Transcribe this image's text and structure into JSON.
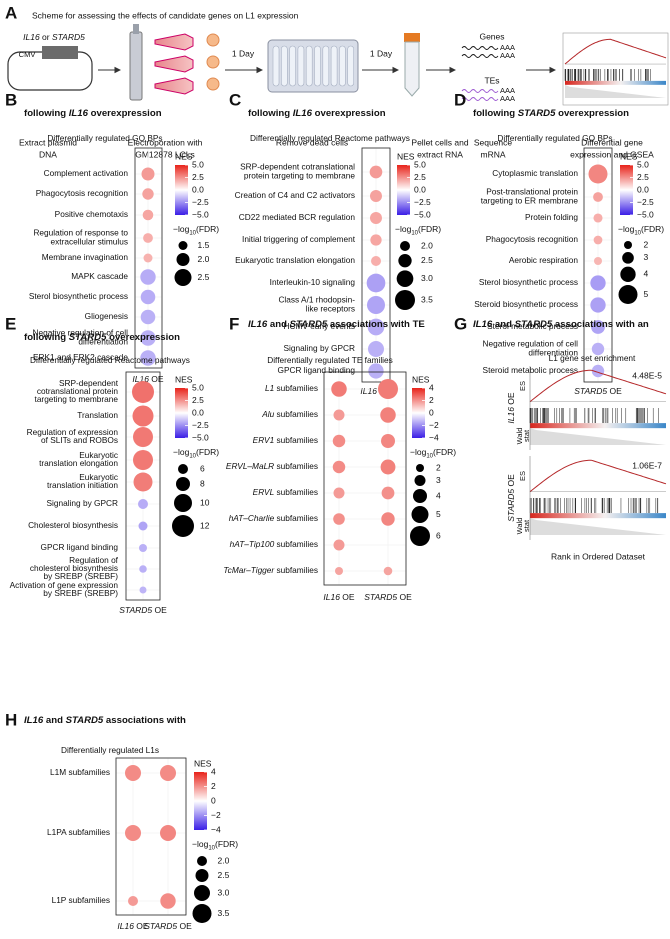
{
  "panel_a": {
    "letter": "A",
    "title": "Scheme for assessing the effects of candidate genes on L1 expression",
    "plasmid_genes": [
      {
        "text": "IL16",
        "italic": true
      },
      {
        "text": " or "
      },
      {
        "text": "STARD5",
        "italic": true
      }
    ],
    "promoter": "CMV",
    "steps": [
      [
        "Extract plasmid",
        "DNA"
      ],
      [
        "Electroporation with",
        "GM12878 LCLs"
      ],
      [
        "Remove dead cells"
      ],
      [
        "Pellet cells and",
        "extract RNA"
      ],
      [
        "Sequence",
        "mRNA"
      ],
      [
        "Differential gene",
        "expression and GSEA"
      ]
    ],
    "intervals": [
      "1 Day",
      "1 Day"
    ],
    "genes": "Genes",
    "tes": "TEs",
    "polya": "AAA"
  },
  "panel_b": {
    "letter": "B",
    "title": [
      [
        "Top enriched GO Biological Processes"
      ],
      [
        {
          "text": "following "
        },
        {
          "text": "IL16",
          "italic": true
        },
        {
          "text": " overexpression"
        }
      ]
    ],
    "subtitle": "Differentially regulated GO BPs",
    "rows": [
      [
        "Complement activation"
      ],
      [
        "Phagocytosis recognition"
      ],
      [
        "Positive chemotaxis"
      ],
      [
        "Regulation of response to",
        "extracellular stimulus"
      ],
      [
        "Membrane invagination"
      ],
      [
        "MAPK cascade"
      ],
      [
        "Sterol biosynthetic process"
      ],
      [
        "Gliogenesis"
      ],
      [
        "Negative regulation of cell",
        "differentiation"
      ],
      [
        "ERK1 and ERK2 cascade"
      ]
    ],
    "columns": [
      {
        "label": [
          {
            "text": "IL16",
            "italic": true
          },
          {
            "text": " OE"
          }
        ],
        "nes": [
          2.5,
          2.3,
          2.2,
          2.0,
          1.9,
          -2.0,
          -2.0,
          -1.9,
          -1.9,
          -1.9
        ],
        "log_fdr": [
          2.0,
          1.8,
          1.7,
          1.6,
          1.5,
          2.3,
          2.2,
          2.2,
          2.3,
          2.3
        ]
      }
    ],
    "nes_label": "NES",
    "nes_lim": [
      -5,
      5
    ],
    "nes_ticks": [
      {
        "value": 5,
        "label": "5.0"
      },
      {
        "value": 2.5,
        "label": "2.5"
      },
      {
        "value": 0,
        "label": "0.0"
      },
      {
        "value": -2.5,
        "label": "−2.5"
      },
      {
        "value": -5,
        "label": "−5.0"
      }
    ],
    "size_label": [
      {
        "text": "−log"
      },
      {
        "text": "10",
        "sub": true
      },
      {
        "text": "(FDR)"
      }
    ],
    "size_ticks": [
      1.5,
      {
        "value": 2,
        "label": "2.0"
      },
      2.5
    ]
  },
  "panel_c": {
    "letter": "C",
    "title": [
      [
        "Top enriched Reactome gene sets"
      ],
      [
        {
          "text": "following "
        },
        {
          "text": "IL16",
          "italic": true
        },
        {
          "text": " overexpression"
        }
      ]
    ],
    "subtitle": "Differentially regulated Reactome pathways",
    "rows": [
      [
        "SRP-dependent cotranslational",
        "protein targeting to membrane"
      ],
      [
        "Creation of C4 and C2 activators"
      ],
      [
        "CD22 mediated BCR regulation"
      ],
      [
        "Initial triggering of complement"
      ],
      [
        "Eukaryotic translation elongation"
      ],
      [
        "Interleukin-10 signaling"
      ],
      [
        "Class A/1 rhodopsin-",
        "like receptors"
      ],
      [
        "HCMV early events"
      ],
      [
        "Signaling by GPCR"
      ],
      [
        "GPCR ligand binding"
      ]
    ],
    "columns": [
      {
        "label": [
          {
            "text": "IL16",
            "italic": true
          },
          {
            "text": " OE"
          }
        ],
        "nes": [
          2.5,
          2.3,
          2.2,
          2.2,
          2.0,
          -2.3,
          -2.2,
          -2.0,
          -1.9,
          -1.9
        ],
        "log_fdr": [
          2.4,
          2.3,
          2.3,
          2.2,
          2.0,
          3.3,
          3.2,
          3.0,
          2.9,
          2.8
        ]
      }
    ],
    "nes_label": "NES",
    "nes_lim": [
      -5,
      5
    ],
    "nes_ticks": [
      {
        "value": 5,
        "label": "5.0"
      },
      {
        "value": 2.5,
        "label": "2.5"
      },
      {
        "value": 0,
        "label": "0.0"
      },
      {
        "value": -2.5,
        "label": "−2.5"
      },
      {
        "value": -5,
        "label": "−5.0"
      }
    ],
    "size_label": [
      {
        "text": "−log"
      },
      {
        "text": "10",
        "sub": true
      },
      {
        "text": "(FDR)"
      }
    ],
    "size_ticks": [
      {
        "value": 2,
        "label": "2.0"
      },
      2.5,
      {
        "value": 3,
        "label": "3.0"
      },
      3.5
    ]
  },
  "panel_d": {
    "letter": "D",
    "title": [
      [
        "Top enriched GO Biological Processes"
      ],
      [
        {
          "text": "following "
        },
        {
          "text": "STARD5",
          "italic": true
        },
        {
          "text": " overexpression"
        }
      ]
    ],
    "subtitle": "Differentially regulated GO BPs",
    "rows": [
      [
        "Cytoplasmic translation"
      ],
      [
        "Post-translational protein",
        "targeting to ER membrane"
      ],
      [
        "Protein folding"
      ],
      [
        "Phagocytosis recognition"
      ],
      [
        "Aerobic respiration"
      ],
      [
        "Sterol biosynthetic process"
      ],
      [
        "Steroid biosynthetic process"
      ],
      [
        "Sterol metabolic process"
      ],
      [
        "Negative regulation of cell",
        "differentiation"
      ],
      [
        "Steroid metabolic process"
      ]
    ],
    "columns": [
      {
        "label": [
          {
            "text": "STARD5",
            "italic": true
          },
          {
            "text": " OE"
          }
        ],
        "nes": [
          3.0,
          2.3,
          2.0,
          2.0,
          1.8,
          -2.4,
          -2.3,
          -2.2,
          -1.9,
          -1.9
        ],
        "log_fdr": [
          5.0,
          2.5,
          2.3,
          2.2,
          2.0,
          4.0,
          4.0,
          3.6,
          3.2,
          3.2
        ]
      }
    ],
    "nes_label": "NES",
    "nes_lim": [
      -5,
      5
    ],
    "nes_ticks": [
      {
        "value": 5,
        "label": "5.0"
      },
      {
        "value": 2.5,
        "label": "2.5"
      },
      {
        "value": 0,
        "label": "0.0"
      },
      {
        "value": -2.5,
        "label": "−2.5"
      },
      {
        "value": -5,
        "label": "−5.0"
      }
    ],
    "size_label": [
      {
        "text": "−log"
      },
      {
        "text": "10",
        "sub": true
      },
      {
        "text": "(FDR)"
      }
    ],
    "size_ticks": [
      2,
      3,
      4,
      5
    ]
  },
  "panel_e": {
    "letter": "E",
    "title": [
      [
        "Top enriched Reactome gene sets"
      ],
      [
        {
          "text": "following "
        },
        {
          "text": "STARD5",
          "italic": true
        },
        {
          "text": " overexpression"
        }
      ]
    ],
    "subtitle": "Differentially regulated Reactome pathways",
    "rows": [
      [
        "SRP-dependent",
        "cotranslational protein",
        "targeting to membrane"
      ],
      [
        "Translation"
      ],
      [
        "Regulation of expression",
        "of SLITs and ROBOs"
      ],
      [
        "Eukaryotic",
        "translation elongation"
      ],
      [
        "Eukaryotic",
        "translation initiation"
      ],
      [
        "Signaling by GPCR"
      ],
      [
        "Cholesterol biosynthesis"
      ],
      [
        "GPCR ligand binding"
      ],
      [
        "Regulation of",
        "cholesterol biosynthesis",
        "by SREBP (SREBF)"
      ],
      [
        "Activation of gene expression",
        "by SREBF (SREBP)"
      ]
    ],
    "columns": [
      {
        "label": [
          {
            "text": "STARD5",
            "italic": true
          },
          {
            "text": " OE"
          }
        ],
        "nes": [
          3.5,
          3.4,
          3.3,
          3.3,
          3.2,
          -2.0,
          -2.2,
          -1.9,
          -1.9,
          -1.8
        ],
        "log_fdr": [
          12,
          11.5,
          11,
          11,
          10.5,
          6,
          5.5,
          5,
          4.8,
          4.5
        ]
      }
    ],
    "nes_label": "NES",
    "nes_lim": [
      -5,
      5
    ],
    "nes_ticks": [
      {
        "value": 5,
        "label": "5.0"
      },
      {
        "value": 2.5,
        "label": "2.5"
      },
      {
        "value": 0,
        "label": "0.0"
      },
      {
        "value": -2.5,
        "label": "−2.5"
      },
      {
        "value": -5,
        "label": "−5.0"
      }
    ],
    "size_label": [
      {
        "text": "−log"
      },
      {
        "text": "10",
        "sub": true
      },
      {
        "text": "(FDR)"
      }
    ],
    "size_ticks": [
      6,
      8,
      10,
      12
    ]
  },
  "panel_f": {
    "letter": "F",
    "title": [
      [
        {
          "text": "IL16",
          "italic": true
        },
        {
          "text": " and "
        },
        {
          "text": "STARD5",
          "italic": true
        },
        {
          "text": " associations with TE"
        }
      ],
      [
        "family gene sets"
      ]
    ],
    "subtitle": "Differentially regulated TE families",
    "rows": [
      [
        [
          {
            "text": "L1",
            "italic": true
          },
          {
            "text": " subfamilies"
          }
        ]
      ],
      [
        [
          {
            "text": "Alu",
            "italic": true
          },
          {
            "text": " subfamilies"
          }
        ]
      ],
      [
        [
          {
            "text": "ERV1",
            "italic": true
          },
          {
            "text": " subfamilies"
          }
        ]
      ],
      [
        [
          {
            "text": "ERVL–MaLR",
            "italic": true
          },
          {
            "text": " subfamilies"
          }
        ]
      ],
      [
        [
          {
            "text": "ERVL",
            "italic": true
          },
          {
            "text": " subfamilies"
          }
        ]
      ],
      [
        [
          {
            "text": "hAT–Charlie",
            "italic": true
          },
          {
            "text": " subfamilies"
          }
        ]
      ],
      [
        [
          {
            "text": "hAT–Tip100",
            "italic": true
          },
          {
            "text": " subfamilies"
          }
        ]
      ],
      [
        [
          {
            "text": "TcMar–Tigger",
            "italic": true
          },
          {
            "text": " subfamilies"
          }
        ]
      ]
    ],
    "columns": [
      {
        "label": [
          {
            "text": "IL16",
            "italic": true
          },
          {
            "text": " OE"
          }
        ],
        "nes": [
          2.6,
          2.0,
          2.3,
          2.3,
          2.0,
          2.2,
          2.0,
          1.8
        ],
        "log_fdr": [
          4.5,
          3.0,
          3.5,
          3.5,
          3.0,
          3.2,
          3.0,
          2.0
        ]
      },
      {
        "label": [
          {
            "text": "STARD5",
            "italic": true
          },
          {
            "text": " OE"
          }
        ],
        "nes": [
          2.6,
          2.5,
          2.4,
          2.5,
          2.2,
          2.4,
          null,
          1.8
        ],
        "log_fdr": [
          6.0,
          4.5,
          4.0,
          4.3,
          3.6,
          3.8,
          null,
          2.2
        ]
      }
    ],
    "nes_label": "NES",
    "nes_lim": [
      -4,
      4
    ],
    "nes_ticks": [
      4,
      2,
      0,
      {
        "value": -2,
        "label": "−2"
      },
      {
        "value": -4,
        "label": "−4"
      }
    ],
    "size_label": [
      {
        "text": "−log"
      },
      {
        "text": "10",
        "sub": true
      },
      {
        "text": "(FDR)"
      }
    ],
    "size_ticks": [
      2,
      3,
      4,
      5,
      6
    ]
  },
  "panel_g": {
    "letter": "G",
    "title": [
      [
        {
          "text": "IL16",
          "italic": true
        },
        {
          "text": " and "
        },
        {
          "text": "STARD5",
          "italic": true
        },
        {
          "text": " associations with an"
        }
      ],
      [
        "L1 family gene set"
      ]
    ],
    "subtitle": "L1 gene set enrichment",
    "plots": [
      {
        "label": [
          {
            "text": "IL16",
            "italic": true
          },
          {
            "text": " OE"
          }
        ],
        "pvalue": "4.48E-5"
      },
      {
        "label": [
          {
            "text": "STARD5",
            "italic": true
          },
          {
            "text": " OE"
          }
        ],
        "pvalue": "1.06E-7"
      }
    ],
    "es_label": "ES",
    "wald_label": [
      "Wald",
      "stat"
    ],
    "x_label": "Rank in Ordered Dataset"
  },
  "panel_h": {
    "letter": "H",
    "title": [
      [
        {
          "text": "IL16",
          "italic": true
        },
        {
          "text": " and "
        },
        {
          "text": "STARD5",
          "italic": true
        },
        {
          "text": " associations with"
        }
      ],
      [
        "age-stratified L1 family gene sets"
      ]
    ],
    "subtitle": "Differentially regulated L1s",
    "rows": [
      [
        "L1M subfamilies"
      ],
      [
        "L1PA subfamilies"
      ],
      [
        "L1P subfamilies"
      ]
    ],
    "columns": [
      {
        "label": [
          {
            "text": "IL16",
            "italic": true
          },
          {
            "text": " OE"
          }
        ],
        "nes": [
          2.3,
          2.3,
          2.0
        ],
        "log_fdr": [
          3.0,
          3.0,
          2.0
        ]
      },
      {
        "label": [
          {
            "text": "STARD5",
            "italic": true
          },
          {
            "text": " OE"
          }
        ],
        "nes": [
          2.3,
          2.4,
          2.3
        ],
        "log_fdr": [
          3.0,
          3.0,
          2.9
        ]
      }
    ],
    "nes_label": "NES",
    "nes_lim": [
      -4,
      4
    ],
    "nes_ticks": [
      4,
      2,
      0,
      {
        "value": -2,
        "label": "−2"
      },
      {
        "value": -4,
        "label": "−4"
      }
    ],
    "size_label": [
      {
        "text": "−log"
      },
      {
        "text": "10",
        "sub": true
      },
      {
        "text": "(FDR)"
      }
    ],
    "size_ticks": [
      {
        "value": 2,
        "label": "2.0"
      },
      2.5,
      {
        "value": 3,
        "label": "3.0"
      },
      3.5
    ]
  }
}
